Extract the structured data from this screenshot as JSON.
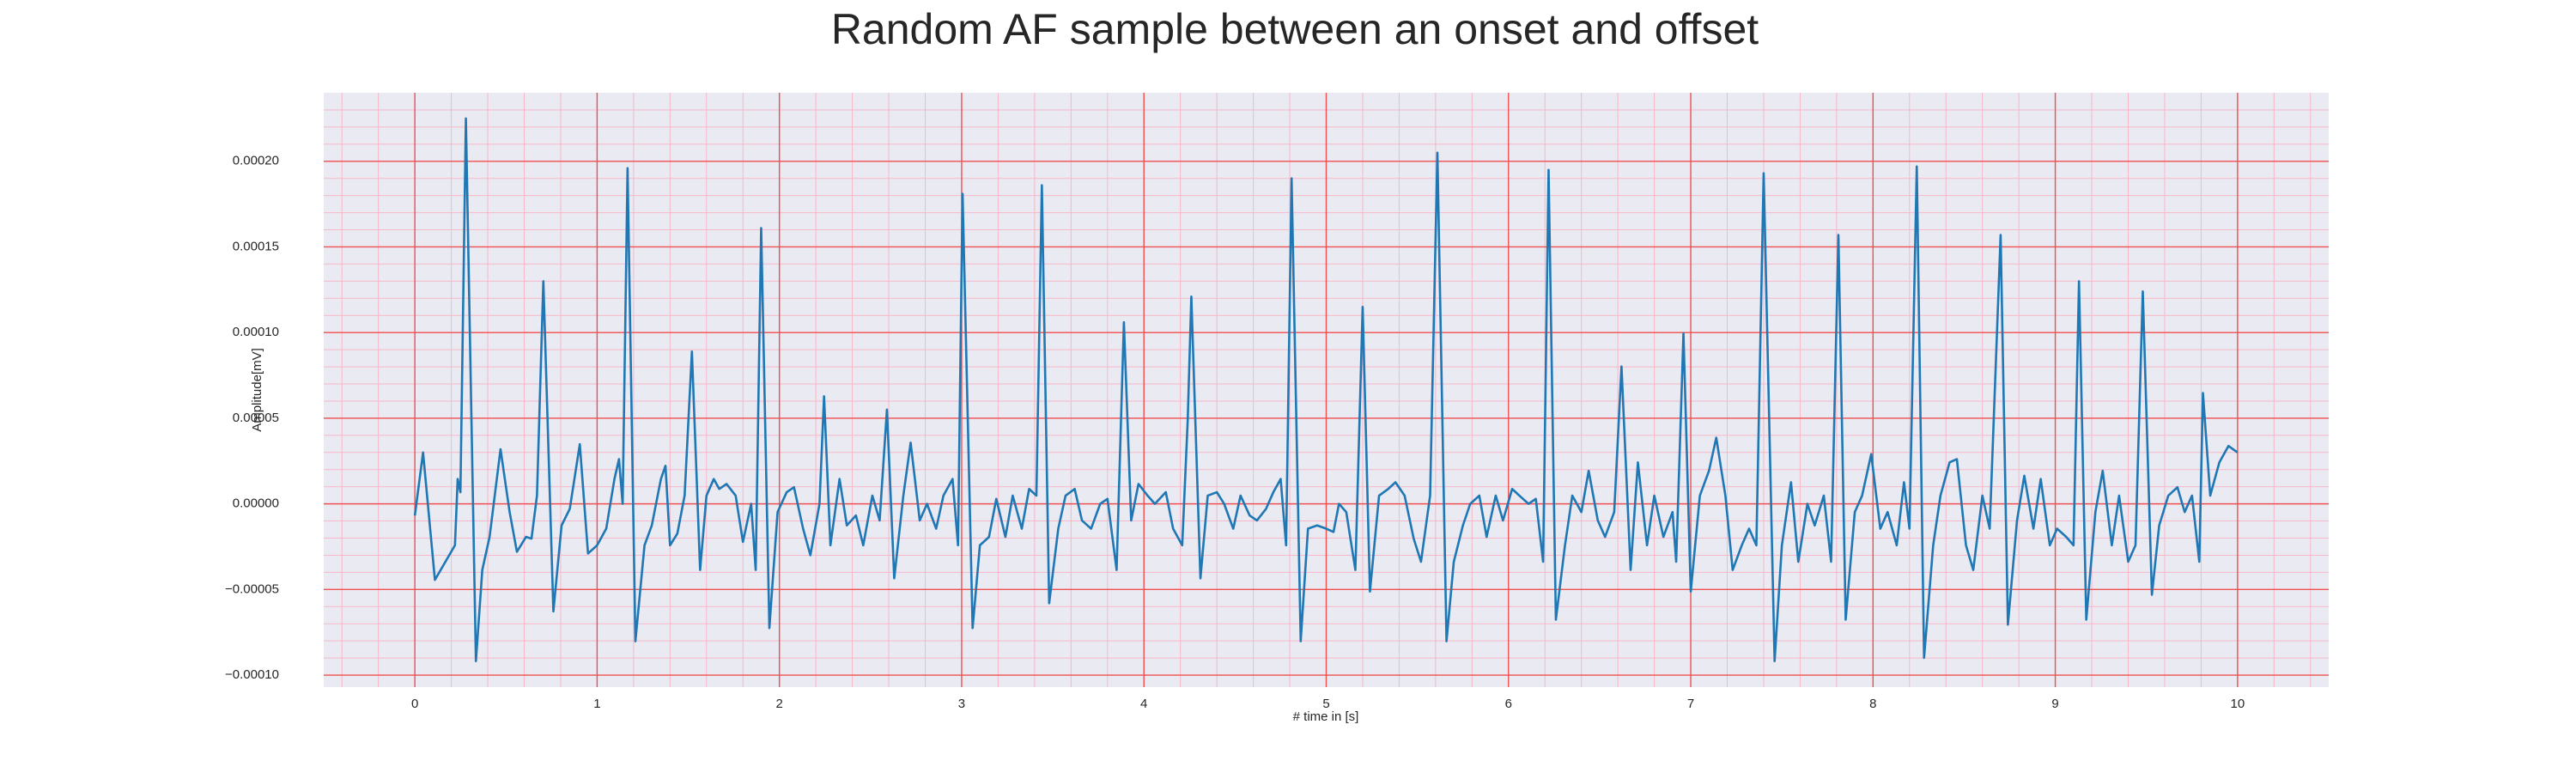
{
  "chart_data": {
    "type": "line",
    "title": "Random AF sample between an onset and offset",
    "xlabel": "# time in [s]",
    "ylabel": "Amplitude[mV]",
    "color": "#1f77b4",
    "grid": true,
    "minor_grid": true,
    "xlim": [
      -0.5,
      10.5
    ],
    "ylim": [
      -0.000107,
      0.00024
    ],
    "xticks": [
      0,
      1,
      2,
      3,
      4,
      5,
      6,
      7,
      8,
      9,
      10
    ],
    "yticks": [
      {
        "value": -0.0001,
        "label": "−0.00010"
      },
      {
        "value": -5e-05,
        "label": "−0.00005"
      },
      {
        "value": 0,
        "label": "0.00000"
      },
      {
        "value": 5e-05,
        "label": "0.00005"
      },
      {
        "value": 0.0001,
        "label": "0.00010"
      },
      {
        "value": 0.00015,
        "label": "0.00015"
      },
      {
        "value": 0.0002,
        "label": "0.00020"
      }
    ],
    "x": [
      0,
      0.045,
      0.11,
      0.22,
      0.235,
      0.25,
      0.28,
      0.335,
      0.37,
      0.41,
      0.47,
      0.52,
      0.56,
      0.61,
      0.64,
      0.67,
      0.705,
      0.76,
      0.805,
      0.85,
      0.905,
      0.95,
      1.0,
      1.05,
      1.095,
      1.12,
      1.14,
      1.167,
      1.21,
      1.26,
      1.3,
      1.35,
      1.375,
      1.4,
      1.44,
      1.48,
      1.52,
      1.565,
      1.6,
      1.64,
      1.67,
      1.71,
      1.76,
      1.8,
      1.845,
      1.87,
      1.9,
      1.945,
      1.99,
      2.04,
      2.08,
      2.13,
      2.17,
      2.22,
      2.245,
      2.28,
      2.33,
      2.37,
      2.42,
      2.46,
      2.51,
      2.55,
      2.59,
      2.63,
      2.68,
      2.72,
      2.77,
      2.81,
      2.86,
      2.9,
      2.95,
      2.98,
      3.005,
      3.06,
      3.1,
      3.15,
      3.19,
      3.24,
      3.28,
      3.33,
      3.37,
      3.41,
      3.44,
      3.48,
      3.53,
      3.57,
      3.62,
      3.66,
      3.71,
      3.76,
      3.8,
      3.85,
      3.89,
      3.93,
      3.97,
      4.02,
      4.06,
      4.12,
      4.16,
      4.21,
      4.24,
      4.26,
      4.31,
      4.35,
      4.4,
      4.44,
      4.49,
      4.53,
      4.58,
      4.62,
      4.67,
      4.71,
      4.75,
      4.78,
      4.81,
      4.86,
      4.9,
      4.95,
      5.0,
      5.04,
      5.07,
      5.11,
      5.16,
      5.2,
      5.24,
      5.29,
      5.34,
      5.38,
      5.43,
      5.48,
      5.52,
      5.57,
      5.61,
      5.66,
      5.7,
      5.75,
      5.79,
      5.84,
      5.88,
      5.93,
      5.97,
      6.02,
      6.06,
      6.11,
      6.15,
      6.19,
      6.22,
      6.26,
      6.31,
      6.35,
      6.4,
      6.44,
      6.49,
      6.53,
      6.58,
      6.62,
      6.67,
      6.71,
      6.76,
      6.8,
      6.85,
      6.9,
      6.92,
      6.96,
      7.0,
      7.05,
      7.1,
      7.14,
      7.19,
      7.23,
      7.28,
      7.32,
      7.36,
      7.4,
      7.46,
      7.5,
      7.55,
      7.59,
      7.64,
      7.68,
      7.73,
      7.77,
      7.81,
      7.85,
      7.9,
      7.94,
      7.99,
      8.04,
      8.08,
      8.13,
      8.17,
      8.2,
      8.24,
      8.28,
      8.33,
      8.37,
      8.42,
      8.46,
      8.51,
      8.55,
      8.6,
      8.64,
      8.7,
      8.74,
      8.79,
      8.83,
      8.88,
      8.92,
      8.97,
      9.01,
      9.06,
      9.1,
      9.13,
      9.17,
      9.22,
      9.26,
      9.31,
      9.35,
      9.4,
      9.44,
      9.48,
      9.53,
      9.57,
      9.62,
      9.67,
      9.71,
      9.75,
      9.79,
      9.81,
      9.85,
      9.9,
      9.95,
      10.0
    ],
    "values": [
      -6.8e-06,
      3e-05,
      -4.44e-05,
      -2.42e-05,
      1.45e-05,
      6.8e-06,
      0.000225,
      -9.18e-05,
      -3.86e-05,
      -1.93e-05,
      3.19e-05,
      -4.8e-06,
      -2.8e-05,
      -1.93e-05,
      -2.03e-05,
      4.8e-06,
      0.00013,
      -6.28e-05,
      -1.26e-05,
      -2.9e-06,
      3.48e-05,
      -2.9e-05,
      -2.42e-05,
      -1.45e-05,
      1.45e-05,
      2.61e-05,
      0,
      0.000196,
      -8.02e-05,
      -2.42e-05,
      -1.26e-05,
      1.45e-05,
      2.22e-05,
      -2.42e-05,
      -1.74e-05,
      4.8e-06,
      8.89e-05,
      -3.86e-05,
      4.8e-06,
      1.45e-05,
      8.7e-06,
      1.16e-05,
      4.8e-06,
      -2.22e-05,
      0,
      -3.86e-05,
      0.000161,
      -7.25e-05,
      -4.8e-06,
      6.8e-06,
      9.7e-06,
      -1.45e-05,
      -3e-05,
      0,
      6.28e-05,
      -2.42e-05,
      1.45e-05,
      -1.26e-05,
      -6.8e-06,
      -2.42e-05,
      4.8e-06,
      -9.7e-06,
      5.5e-05,
      -4.35e-05,
      4.8e-06,
      3.57e-05,
      -9.7e-06,
      0,
      -1.45e-05,
      4.8e-06,
      1.45e-05,
      -2.42e-05,
      0.000181,
      -7.25e-05,
      -2.42e-05,
      -1.93e-05,
      2.9e-06,
      -1.93e-05,
      4.8e-06,
      -1.45e-05,
      8.7e-06,
      4.8e-06,
      0.000186,
      -5.8e-05,
      -1.45e-05,
      4.8e-06,
      8.7e-06,
      -9.7e-06,
      -1.45e-05,
      0,
      2.9e-06,
      -3.86e-05,
      0.000106,
      -9.7e-06,
      1.16e-05,
      4.8e-06,
      0,
      6.8e-06,
      -1.45e-05,
      -2.42e-05,
      4.83e-05,
      0.000121,
      -4.35e-05,
      4.8e-06,
      6.8e-06,
      0,
      -1.45e-05,
      4.8e-06,
      -6.8e-06,
      -9.7e-06,
      -2.9e-06,
      6.8e-06,
      1.45e-05,
      -2.42e-05,
      0.00019,
      -8.02e-05,
      -1.45e-05,
      -1.26e-05,
      -1.45e-05,
      -1.64e-05,
      0,
      -4.8e-06,
      -3.86e-05,
      0.000115,
      -5.12e-05,
      4.8e-06,
      8.7e-06,
      1.26e-05,
      4.8e-06,
      -2.03e-05,
      -3.38e-05,
      4.8e-06,
      0.000205,
      -8.02e-05,
      -3.38e-05,
      -1.26e-05,
      0,
      4.8e-06,
      -1.93e-05,
      4.8e-06,
      -9.7e-06,
      8.7e-06,
      4.8e-06,
      0,
      2.9e-06,
      -3.38e-05,
      0.000195,
      -6.76e-05,
      -2.42e-05,
      4.8e-06,
      -4.8e-06,
      1.93e-05,
      -9.7e-06,
      -1.93e-05,
      -4.8e-06,
      8.02e-05,
      -3.86e-05,
      2.42e-05,
      -2.42e-05,
      4.8e-06,
      -1.93e-05,
      -4.8e-06,
      -3.38e-05,
      9.95e-05,
      -5.12e-05,
      4.8e-06,
      1.93e-05,
      3.86e-05,
      4.8e-06,
      -3.86e-05,
      -2.42e-05,
      -1.45e-05,
      -2.42e-05,
      0.000193,
      -9.18e-05,
      -2.42e-05,
      1.26e-05,
      -3.38e-05,
      0,
      -1.26e-05,
      4.8e-06,
      -3.38e-05,
      0.000157,
      -6.76e-05,
      -4.8e-06,
      4.8e-06,
      2.9e-05,
      -1.45e-05,
      -4.8e-06,
      -2.42e-05,
      1.26e-05,
      -1.45e-05,
      0.000197,
      -8.99e-05,
      -2.42e-05,
      4.8e-06,
      2.42e-05,
      2.61e-05,
      -2.42e-05,
      -3.86e-05,
      4.8e-06,
      -1.45e-05,
      0.000157,
      -7.05e-05,
      -9.7e-06,
      1.64e-05,
      -1.45e-05,
      1.45e-05,
      -2.42e-05,
      -1.45e-05,
      -1.93e-05,
      -2.42e-05,
      0.00013,
      -6.76e-05,
      -4.8e-06,
      1.93e-05,
      -2.42e-05,
      4.8e-06,
      -3.38e-05,
      -2.42e-05,
      0.000124,
      -5.31e-05,
      -1.26e-05,
      4.8e-06,
      9.7e-06,
      -4.8e-06,
      4.8e-06,
      -3.38e-05,
      6.47e-05,
      4.8e-06,
      2.42e-05,
      3.38e-05,
      3e-05
    ]
  }
}
